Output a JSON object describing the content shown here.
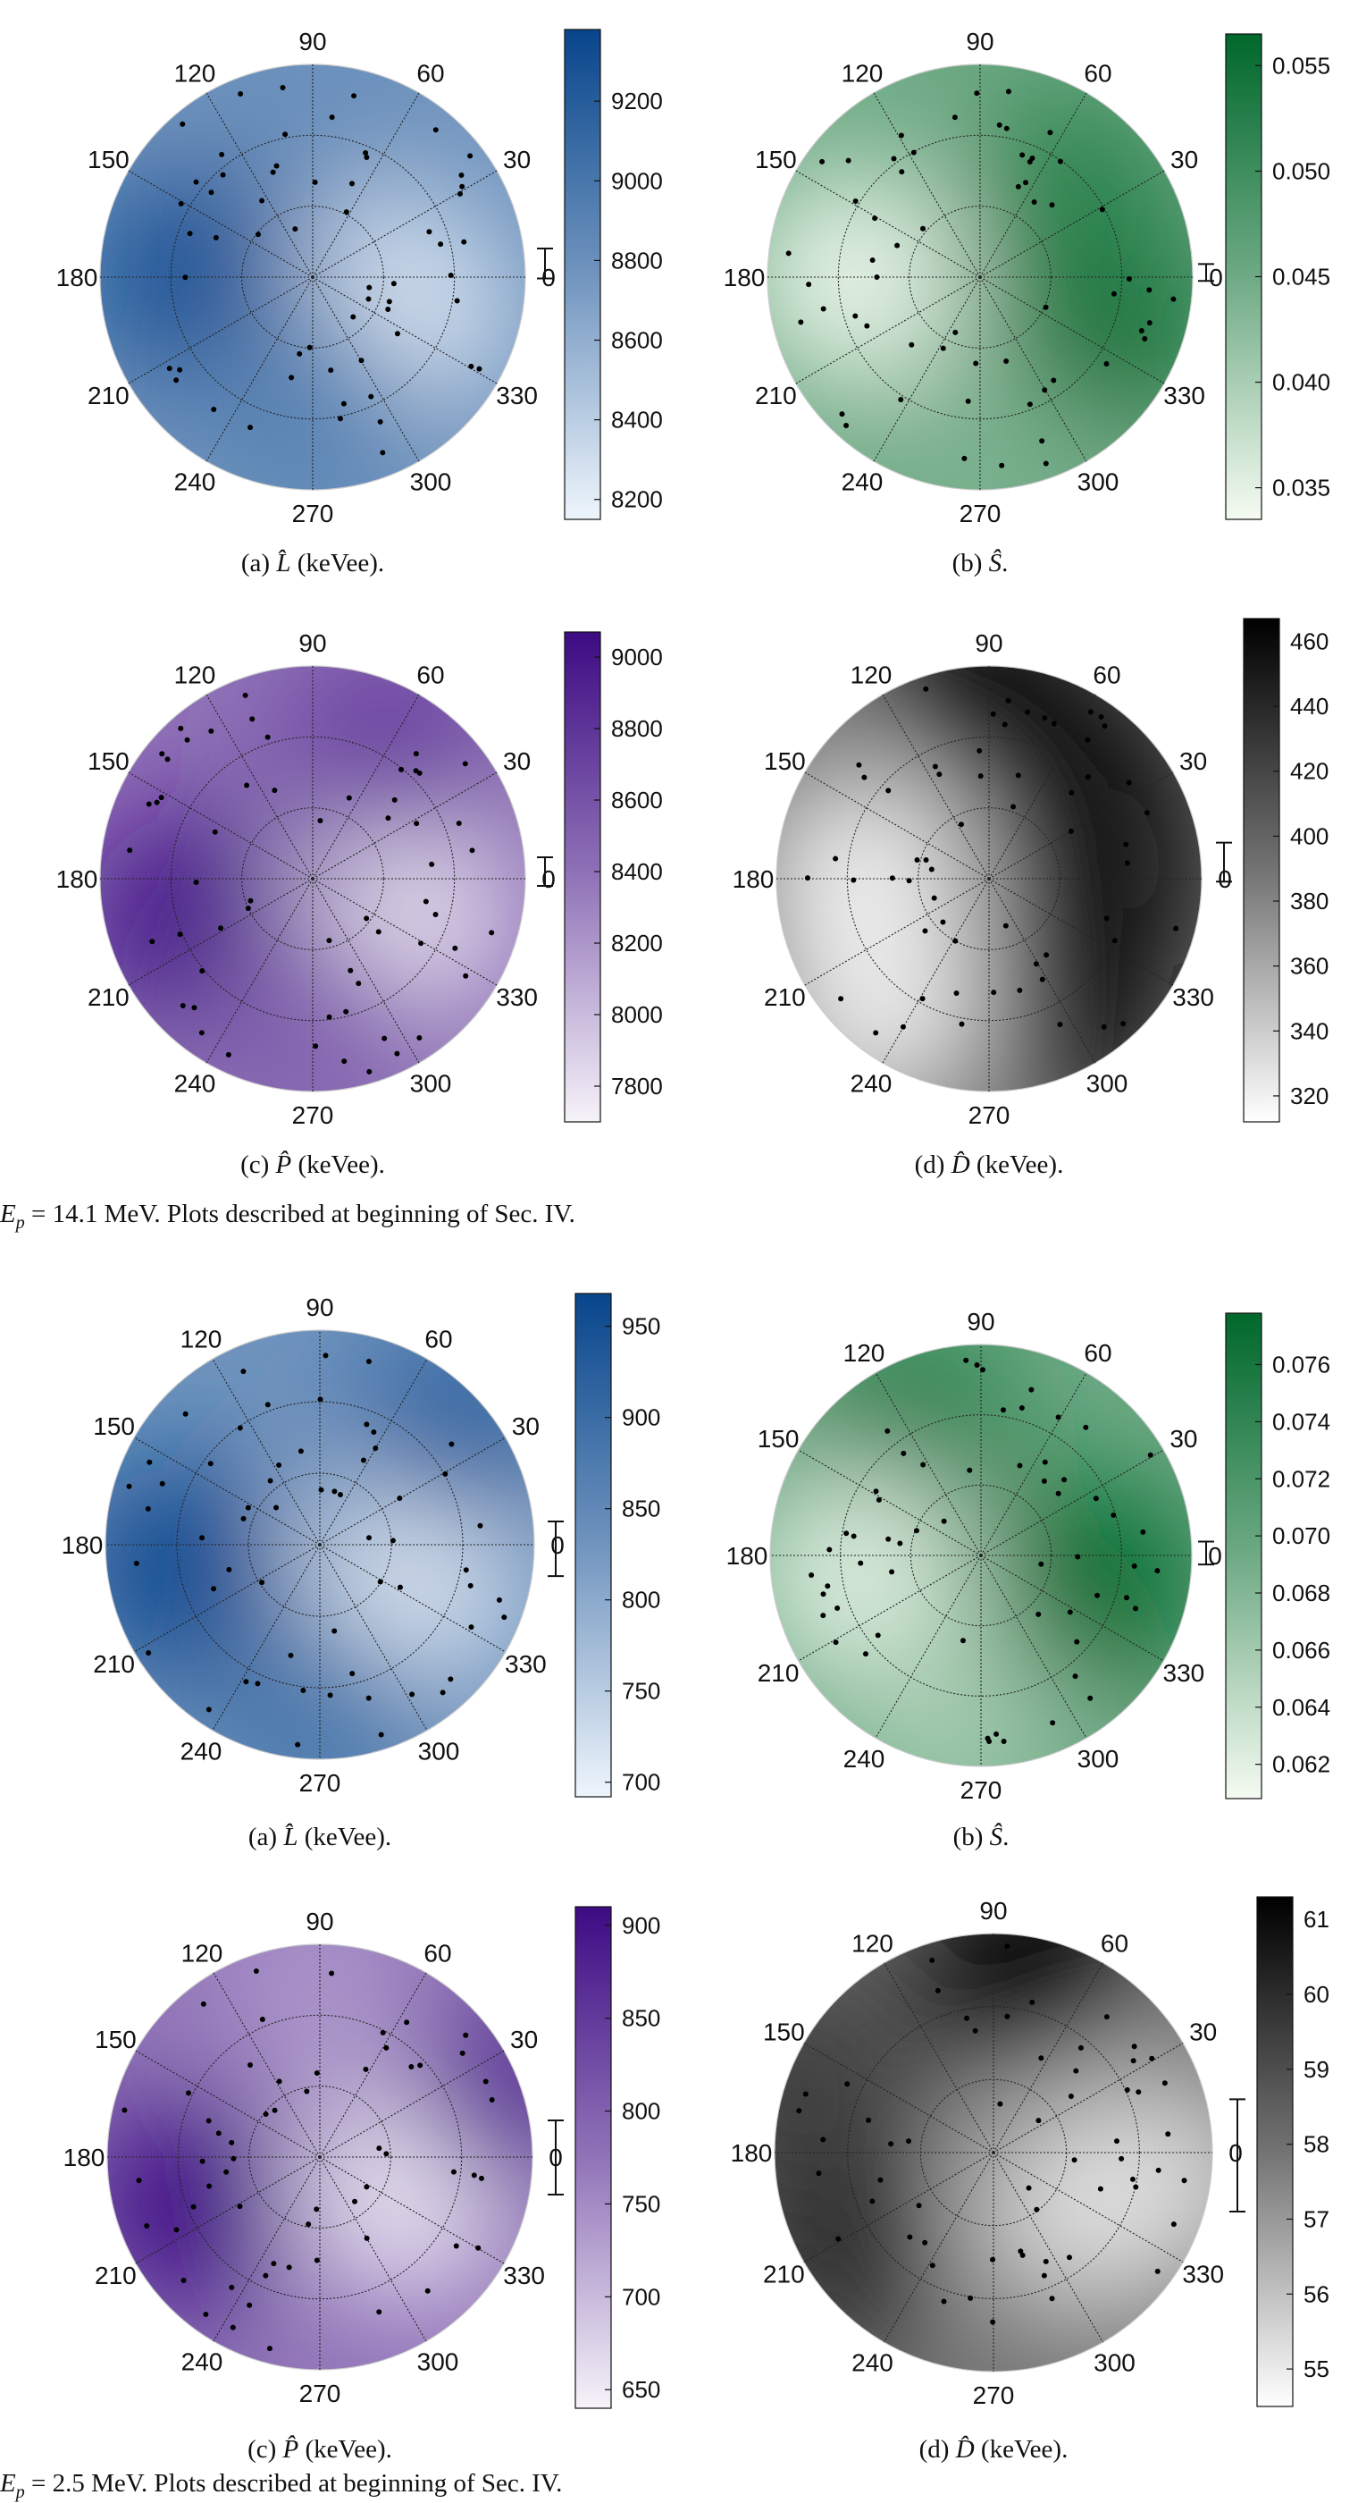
{
  "figures": [
    {
      "caption": {
        "var": "E",
        "sub": "p",
        "text": " = 14.1 MeV. Plots described at beginning of Sec. IV."
      },
      "panels": [
        {
          "id": "L14",
          "caption": {
            "label": "(a)",
            "symbol": "L̂",
            "suffix": "(keVee)."
          }
        },
        {
          "id": "S14",
          "caption": {
            "label": "(b)",
            "symbol": "Ŝ",
            "suffix": "."
          }
        },
        {
          "id": "P14",
          "caption": {
            "label": "(c)",
            "symbol": "P̂",
            "suffix": "(keVee)."
          }
        },
        {
          "id": "D14",
          "caption": {
            "label": "(d)",
            "symbol": "D̂",
            "suffix": "(keVee)."
          }
        }
      ]
    },
    {
      "caption": {
        "var": "E",
        "sub": "p",
        "text": " = 2.5 MeV. Plots described at beginning of Sec. IV."
      },
      "panels": [
        {
          "id": "L25",
          "caption": {
            "label": "(a)",
            "symbol": "L̂",
            "suffix": "(keVee)."
          }
        },
        {
          "id": "S25",
          "caption": {
            "label": "(b)",
            "symbol": "Ŝ",
            "suffix": "."
          }
        },
        {
          "id": "P25",
          "caption": {
            "label": "(c)",
            "symbol": "P̂",
            "suffix": "(keVee)."
          }
        },
        {
          "id": "D25",
          "caption": {
            "label": "(d)",
            "symbol": "D̂",
            "suffix": "(keVee)."
          }
        }
      ]
    }
  ],
  "colors": {
    "blue_low": "#eef5fc",
    "blue_high": "#08458c",
    "green_low": "#f5fbf2",
    "green_high": "#00682b",
    "purple_low": "#f6f3f9",
    "purple_high": "#3d0b83",
    "gray_low": "#ffffff",
    "gray_high": "#000000",
    "grid": "#222222",
    "marker": "#000000"
  },
  "chart_data": [
    {
      "id": "L14",
      "type": "heatmap",
      "projection": "polar",
      "colormap": "blue",
      "angle_labels": [
        "0",
        "30",
        "60",
        "90",
        "120",
        "150",
        "180",
        "210",
        "240",
        "270",
        "300",
        "330"
      ],
      "colorbar": {
        "ticks": [
          8200,
          8400,
          8600,
          8800,
          9000,
          9200
        ],
        "range": [
          8150,
          9380
        ],
        "error_bar": [
          8755,
          8830
        ]
      },
      "features": [
        {
          "angle": 180,
          "r": 0.55,
          "value": 9300
        },
        {
          "angle": 340,
          "r": 0.45,
          "value": 8200
        },
        {
          "angle": 90,
          "r": 0.9,
          "value": 8800
        },
        {
          "angle": 270,
          "r": 0.6,
          "value": 8900
        }
      ]
    },
    {
      "id": "S14",
      "type": "heatmap",
      "projection": "polar",
      "colormap": "green",
      "angle_labels": [
        "0",
        "30",
        "60",
        "90",
        "120",
        "150",
        "180",
        "210",
        "240",
        "270",
        "300",
        "330"
      ],
      "colorbar": {
        "ticks": [
          0.035,
          0.04,
          0.045,
          0.05,
          0.055
        ],
        "range": [
          0.0335,
          0.0565
        ],
        "error_bar": [
          0.0448,
          0.0456
        ]
      },
      "features": [
        {
          "angle": 340,
          "r": 0.6,
          "value": 0.056
        },
        {
          "angle": 40,
          "r": 0.55,
          "value": 0.052
        },
        {
          "angle": 180,
          "r": 0.6,
          "value": 0.034
        },
        {
          "angle": 270,
          "r": 0.85,
          "value": 0.044
        }
      ]
    },
    {
      "id": "P14",
      "type": "heatmap",
      "projection": "polar",
      "colormap": "purple",
      "angle_labels": [
        "0",
        "30",
        "60",
        "90",
        "120",
        "150",
        "180",
        "210",
        "240",
        "270",
        "300",
        "330"
      ],
      "colorbar": {
        "ticks": [
          7800,
          8000,
          8200,
          8400,
          8600,
          8800,
          9000
        ],
        "range": [
          7700,
          9070
        ],
        "error_bar": [
          8360,
          8440
        ]
      },
      "features": [
        {
          "angle": 200,
          "r": 0.6,
          "value": 9050
        },
        {
          "angle": 340,
          "r": 0.45,
          "value": 7750
        },
        {
          "angle": 60,
          "r": 0.7,
          "value": 8700
        },
        {
          "angle": 270,
          "r": 0.7,
          "value": 8500
        }
      ]
    },
    {
      "id": "D14",
      "type": "heatmap",
      "projection": "polar",
      "colormap": "gray",
      "angle_labels": [
        "0",
        "30",
        "60",
        "90",
        "120",
        "150",
        "180",
        "210",
        "240",
        "270",
        "300",
        "330"
      ],
      "colorbar": {
        "ticks": [
          320,
          340,
          360,
          380,
          400,
          420,
          440,
          460
        ],
        "range": [
          312,
          467
        ],
        "error_bar": [
          386,
          398
        ]
      },
      "features": [
        {
          "angle": 90,
          "r": 0.9,
          "value": 465
        },
        {
          "angle": 45,
          "r": 0.65,
          "value": 460
        },
        {
          "angle": 0,
          "r": 0.55,
          "value": 455
        },
        {
          "angle": 300,
          "r": 0.7,
          "value": 460
        },
        {
          "angle": 180,
          "r": 0.6,
          "value": 318
        },
        {
          "angle": 230,
          "r": 0.8,
          "value": 322
        }
      ]
    },
    {
      "id": "L25",
      "type": "heatmap",
      "projection": "polar",
      "colormap": "blue",
      "angle_labels": [
        "0",
        "30",
        "60",
        "90",
        "120",
        "150",
        "180",
        "210",
        "240",
        "270",
        "300",
        "330"
      ],
      "colorbar": {
        "ticks": [
          700,
          750,
          800,
          850,
          900,
          950
        ],
        "range": [
          692,
          968
        ],
        "error_bar": [
          813,
          843
        ]
      },
      "features": [
        {
          "angle": 190,
          "r": 0.65,
          "value": 960
        },
        {
          "angle": 340,
          "r": 0.45,
          "value": 700
        },
        {
          "angle": 40,
          "r": 0.85,
          "value": 910
        },
        {
          "angle": 270,
          "r": 0.8,
          "value": 880
        }
      ]
    },
    {
      "id": "S25",
      "type": "heatmap",
      "projection": "polar",
      "colormap": "green",
      "angle_labels": [
        "0",
        "30",
        "60",
        "90",
        "120",
        "150",
        "180",
        "210",
        "240",
        "270",
        "300",
        "330"
      ],
      "colorbar": {
        "ticks": [
          0.062,
          0.064,
          0.066,
          0.068,
          0.07,
          0.072,
          0.074,
          0.076
        ],
        "range": [
          0.0608,
          0.0778
        ],
        "error_bar": [
          0.069,
          0.0698
        ]
      },
      "features": [
        {
          "angle": 345,
          "r": 0.55,
          "value": 0.0775
        },
        {
          "angle": 120,
          "r": 0.7,
          "value": 0.075
        },
        {
          "angle": 190,
          "r": 0.6,
          "value": 0.062
        },
        {
          "angle": 260,
          "r": 0.8,
          "value": 0.066
        }
      ]
    },
    {
      "id": "P25",
      "type": "heatmap",
      "projection": "polar",
      "colormap": "purple",
      "angle_labels": [
        "0",
        "30",
        "60",
        "90",
        "120",
        "150",
        "180",
        "210",
        "240",
        "270",
        "300",
        "330"
      ],
      "colorbar": {
        "ticks": [
          650,
          700,
          750,
          800,
          850,
          900
        ],
        "range": [
          640,
          910
        ],
        "error_bar": [
          755,
          795
        ]
      },
      "features": [
        {
          "angle": 200,
          "r": 0.65,
          "value": 905
        },
        {
          "angle": 340,
          "r": 0.45,
          "value": 645
        },
        {
          "angle": 20,
          "r": 0.95,
          "value": 860
        },
        {
          "angle": 90,
          "r": 0.8,
          "value": 740
        }
      ]
    },
    {
      "id": "D25",
      "type": "heatmap",
      "projection": "polar",
      "colormap": "gray",
      "angle_labels": [
        "0",
        "30",
        "60",
        "90",
        "120",
        "150",
        "180",
        "210",
        "240",
        "270",
        "300",
        "330"
      ],
      "colorbar": {
        "ticks": [
          55,
          56,
          57,
          58,
          59,
          60,
          61
        ],
        "range": [
          54.5,
          61.3
        ],
        "error_bar": [
          57.1,
          58.6
        ]
      },
      "features": [
        {
          "angle": 80,
          "r": 0.85,
          "value": 61.2
        },
        {
          "angle": 210,
          "r": 0.8,
          "value": 60
        },
        {
          "angle": 160,
          "r": 0.95,
          "value": 59.5
        },
        {
          "angle": 330,
          "r": 0.5,
          "value": 55
        },
        {
          "angle": 350,
          "r": 0.75,
          "value": 55.3
        }
      ]
    }
  ]
}
